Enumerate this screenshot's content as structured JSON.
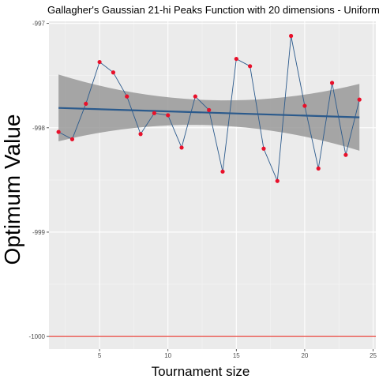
{
  "chart_data": {
    "type": "line",
    "title": "Gallagher's Gaussian 21-hi Peaks Function with 20 dimensions -  Uniform",
    "xlabel": "Tournament size",
    "ylabel": "Optimum Value",
    "xlim": [
      1.3,
      25.2
    ],
    "ylim": [
      -1000.12,
      -996.98
    ],
    "x_ticks": [
      5,
      10,
      15,
      20,
      25
    ],
    "y_ticks": [
      -1000,
      -999,
      -998,
      -997
    ],
    "x_tick_labels": [
      "5",
      "10",
      "15",
      "20",
      "25"
    ],
    "y_tick_labels": [
      "-1000",
      "-999",
      "-998",
      "-997"
    ],
    "grid": true,
    "legend": "none",
    "series": [
      {
        "x": [
          2,
          3,
          4,
          5,
          6,
          7,
          8,
          9,
          10,
          11,
          12,
          13,
          14,
          15,
          16,
          17,
          18,
          19,
          20,
          21,
          22,
          23,
          24
        ],
        "values": [
          -998.04,
          -998.11,
          -997.77,
          -997.37,
          -997.47,
          -997.7,
          -998.06,
          -997.86,
          -997.88,
          -998.19,
          -997.7,
          -997.83,
          -998.42,
          -997.34,
          -997.41,
          -998.2,
          -998.51,
          -997.12,
          -997.79,
          -998.39,
          -997.57,
          -998.26,
          -997.73
        ]
      }
    ],
    "trend": {
      "type": "linear",
      "start": [
        2,
        -997.81
      ],
      "end": [
        24,
        -997.9
      ],
      "band_upper": [
        -997.49,
        -997.58
      ],
      "band_lower": [
        -998.13,
        -998.23
      ]
    },
    "reference_line": {
      "y": -1000
    },
    "colors": {
      "point": "#e8102a",
      "line": "#2b5a8c",
      "trend": "#2b5a8c",
      "band": "#999999",
      "reference": "#e8453c",
      "panel": "#ebebeb"
    }
  }
}
